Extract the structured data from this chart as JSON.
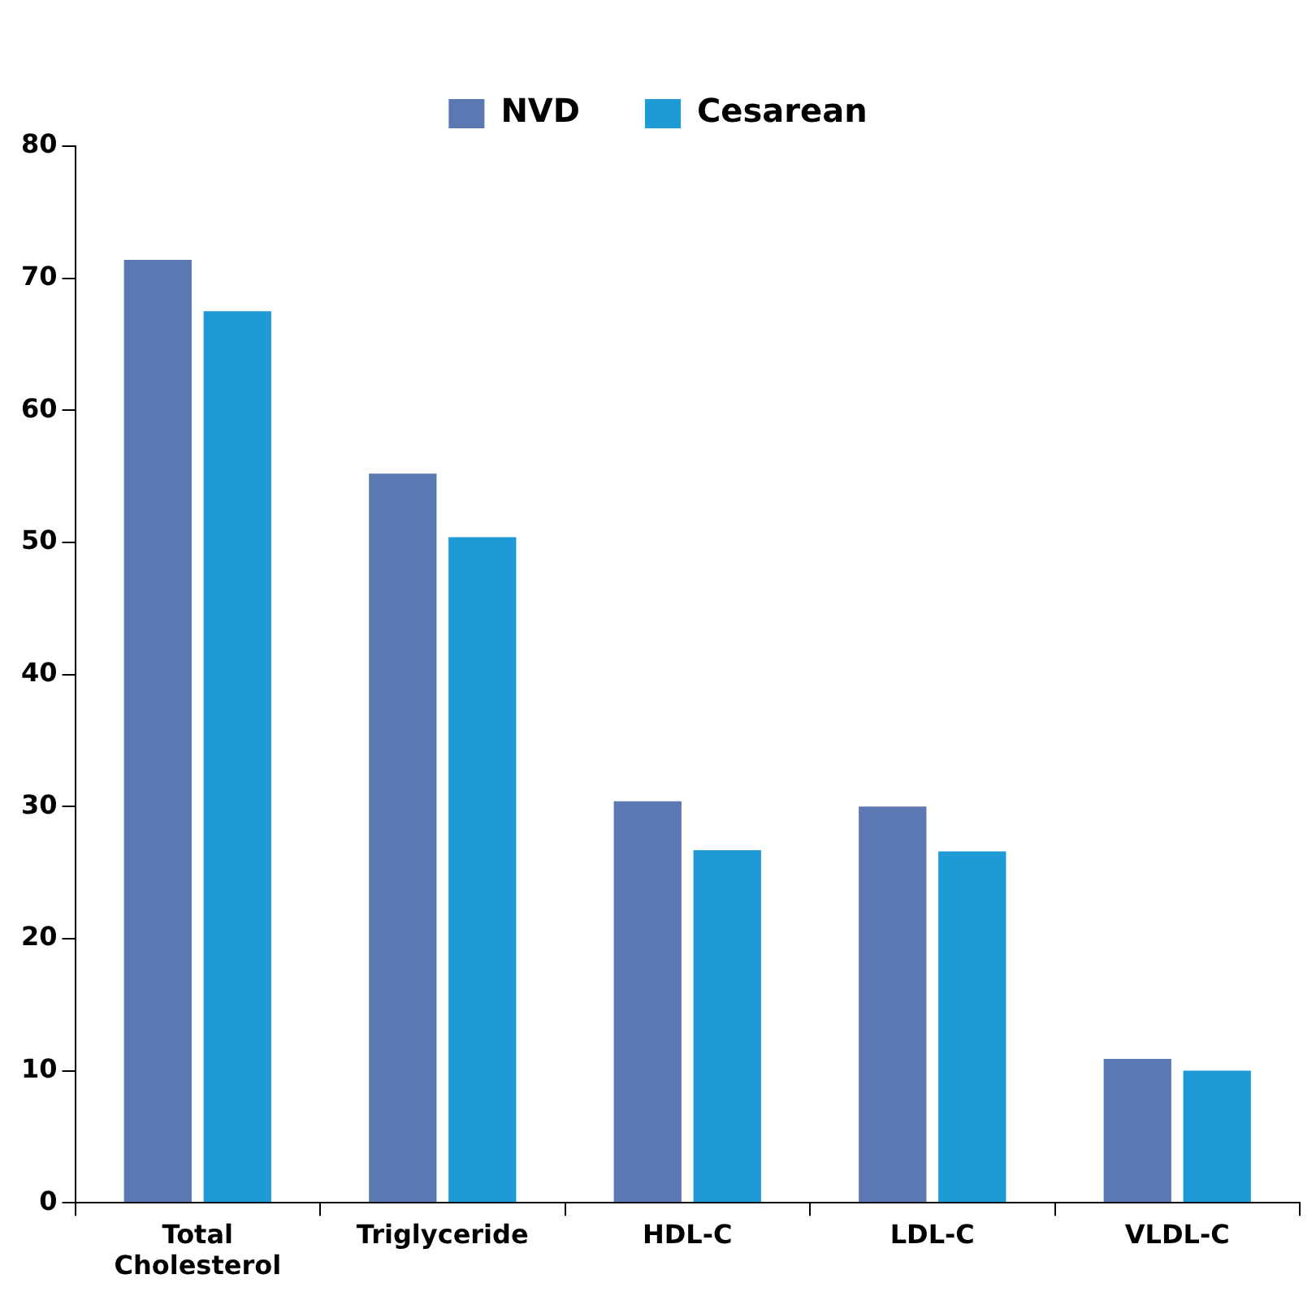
{
  "chart_data": {
    "type": "bar",
    "categories": [
      "Total Cholesterol",
      "Triglyceride",
      "HDL-C",
      "LDL-C",
      "VLDL-C"
    ],
    "series": [
      {
        "name": "NVD",
        "color": "#5b78b2",
        "values": [
          71.4,
          55.2,
          30.4,
          30.0,
          10.9
        ]
      },
      {
        "name": "Cesarean",
        "color": "#1e9ad6",
        "values": [
          67.5,
          50.4,
          26.7,
          26.6,
          10.0
        ]
      }
    ],
    "ylim": [
      0,
      80
    ],
    "yticks": [
      0,
      10,
      20,
      30,
      40,
      50,
      60,
      70,
      80
    ],
    "grid": false,
    "legend": "top"
  }
}
